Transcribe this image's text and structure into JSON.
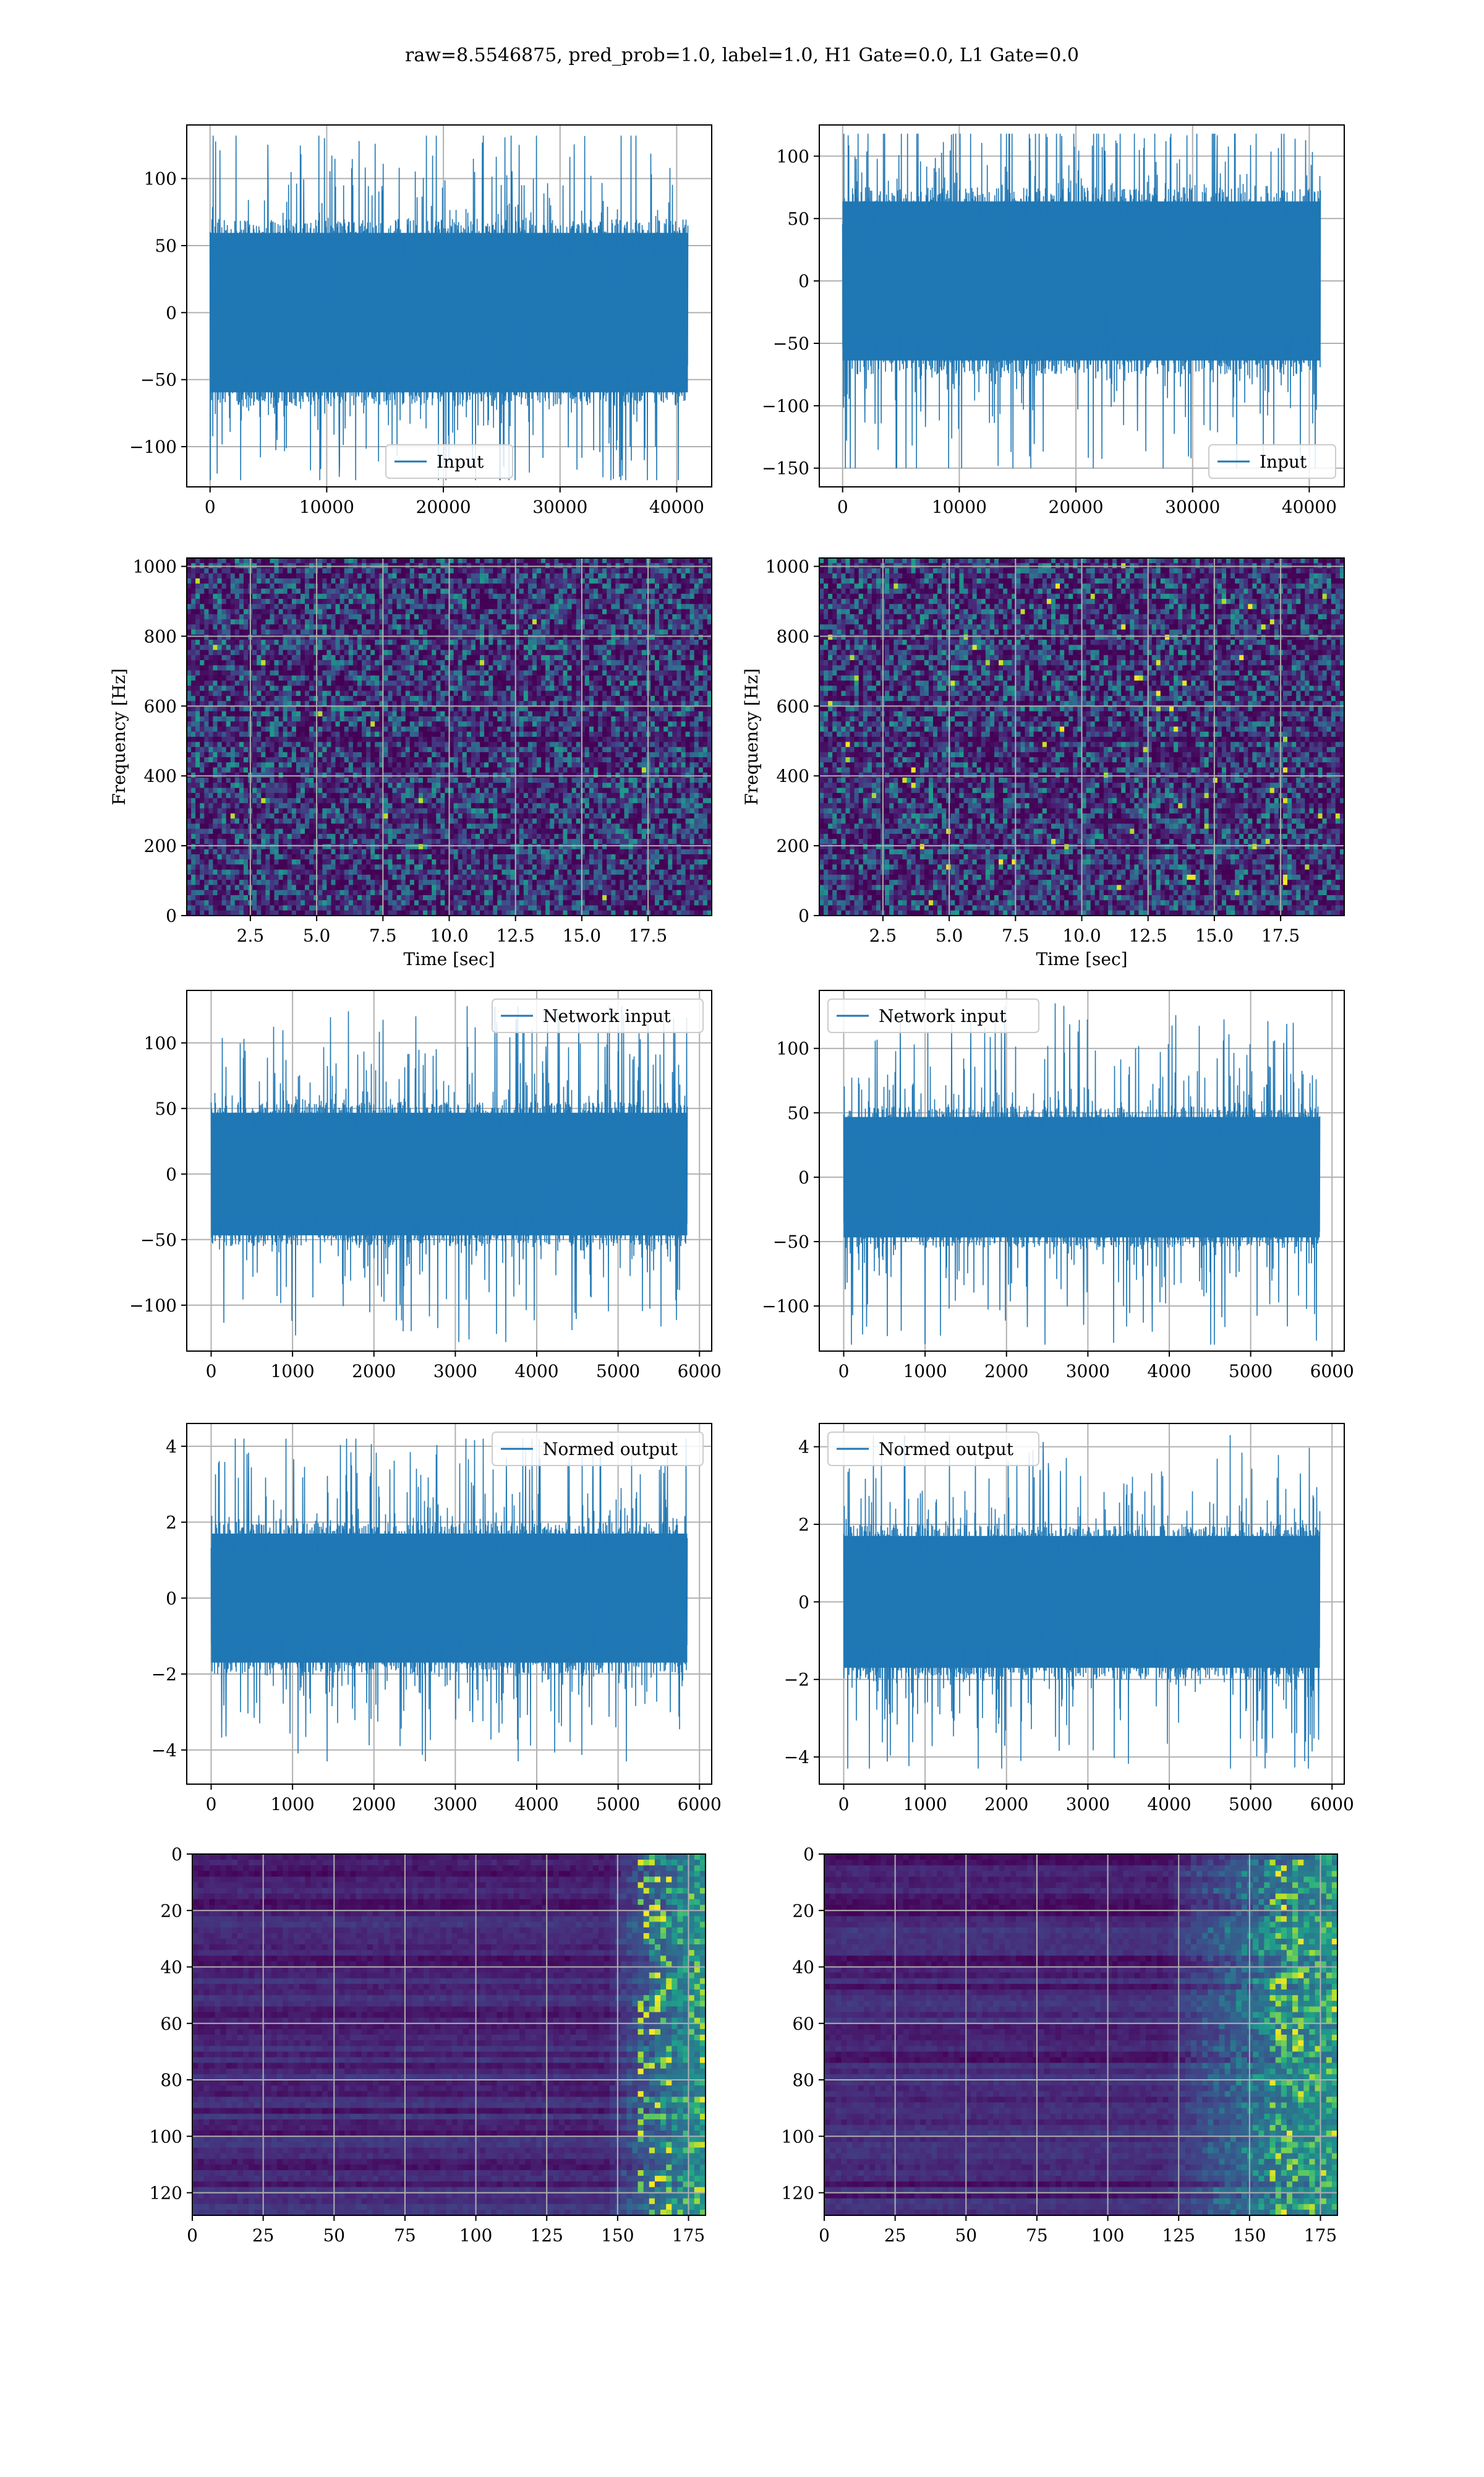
{
  "figure": {
    "suptitle": "raw=8.5546875, pred_prob=1.0, label=1.0, H1 Gate=0.0, L1 Gate=0.0"
  },
  "colors": {
    "line": "#1f77b4",
    "grid": "#b0b0b0",
    "viridis_dark": "#440154",
    "viridis_mid": "#21918c",
    "viridis_light": "#fde725"
  },
  "chart_data": [
    {
      "id": "input_left",
      "type": "line",
      "legend": "Input",
      "legend_loc": "lower center",
      "xlim": [
        -2000,
        43000
      ],
      "ylim": [
        -130,
        140
      ],
      "xticks": [
        0,
        10000,
        20000,
        30000,
        40000
      ],
      "yticks": [
        -100,
        -50,
        0,
        50,
        100
      ],
      "x_range": [
        0,
        40960
      ],
      "band": [
        -70,
        70
      ],
      "peak_range": [
        -125,
        132
      ],
      "grid": true,
      "xlabel": "",
      "ylabel": ""
    },
    {
      "id": "input_right",
      "type": "line",
      "legend": "Input",
      "legend_loc": "lower right",
      "xlim": [
        -2000,
        43000
      ],
      "ylim": [
        -165,
        125
      ],
      "xticks": [
        0,
        10000,
        20000,
        30000,
        40000
      ],
      "yticks": [
        -150,
        -100,
        -50,
        0,
        50,
        100
      ],
      "x_range": [
        0,
        40960
      ],
      "band": [
        -75,
        75
      ],
      "peak_range": [
        -150,
        118
      ],
      "grid": true,
      "xlabel": "",
      "ylabel": ""
    },
    {
      "id": "spectrogram_left",
      "type": "heatmap",
      "colormap": "viridis",
      "xlim": [
        0.1,
        19.9
      ],
      "ylim": [
        0,
        1024
      ],
      "xticks": [
        2.5,
        5.0,
        7.5,
        10.0,
        12.5,
        15.0,
        17.5
      ],
      "xtick_labels": [
        "2.5",
        "5.0",
        "7.5",
        "10.0",
        "12.5",
        "15.0",
        "17.5"
      ],
      "yticks": [
        0,
        200,
        400,
        600,
        800,
        1000
      ],
      "xlabel": "Time [sec]",
      "ylabel": "Frequency [Hz]",
      "grid": true
    },
    {
      "id": "spectrogram_right",
      "type": "heatmap",
      "colormap": "viridis",
      "xlim": [
        0.1,
        19.9
      ],
      "ylim": [
        0,
        1024
      ],
      "xticks": [
        2.5,
        5.0,
        7.5,
        10.0,
        12.5,
        15.0,
        17.5
      ],
      "xtick_labels": [
        "2.5",
        "5.0",
        "7.5",
        "10.0",
        "12.5",
        "15.0",
        "17.5"
      ],
      "yticks": [
        0,
        200,
        400,
        600,
        800,
        1000
      ],
      "xlabel": "Time [sec]",
      "ylabel": "Frequency [Hz]",
      "grid": true
    },
    {
      "id": "network_left",
      "type": "line",
      "legend": "Network input",
      "legend_loc": "upper right",
      "xlim": [
        -300,
        6150
      ],
      "ylim": [
        -135,
        140
      ],
      "xticks": [
        0,
        1000,
        2000,
        3000,
        4000,
        5000,
        6000
      ],
      "yticks": [
        -100,
        -50,
        0,
        50,
        100
      ],
      "x_range": [
        0,
        5850
      ],
      "band": [
        -55,
        55
      ],
      "peak_range": [
        -128,
        128
      ],
      "grid": true,
      "xlabel": "",
      "ylabel": ""
    },
    {
      "id": "network_right",
      "type": "line",
      "legend": "Network input",
      "legend_loc": "upper left",
      "xlim": [
        -300,
        6150
      ],
      "ylim": [
        -135,
        145
      ],
      "xticks": [
        0,
        1000,
        2000,
        3000,
        4000,
        5000,
        6000
      ],
      "yticks": [
        -100,
        -50,
        0,
        50,
        100
      ],
      "x_range": [
        0,
        5850
      ],
      "band": [
        -55,
        55
      ],
      "peak_range": [
        -130,
        135
      ],
      "grid": true,
      "xlabel": "",
      "ylabel": ""
    },
    {
      "id": "normed_left",
      "type": "line",
      "legend": "Normed output",
      "legend_loc": "upper right",
      "xlim": [
        -300,
        6150
      ],
      "ylim": [
        -4.9,
        4.6
      ],
      "xticks": [
        0,
        1000,
        2000,
        3000,
        4000,
        5000,
        6000
      ],
      "yticks": [
        -4,
        -2,
        0,
        2,
        4
      ],
      "x_range": [
        0,
        5850
      ],
      "band": [
        -2,
        2
      ],
      "peak_range": [
        -4.3,
        4.2
      ],
      "grid": true,
      "xlabel": "",
      "ylabel": ""
    },
    {
      "id": "normed_right",
      "type": "line",
      "legend": "Normed output",
      "legend_loc": "upper left",
      "xlim": [
        -300,
        6150
      ],
      "ylim": [
        -4.7,
        4.6
      ],
      "xticks": [
        0,
        1000,
        2000,
        3000,
        4000,
        5000,
        6000
      ],
      "yticks": [
        -4,
        -2,
        0,
        2,
        4
      ],
      "x_range": [
        0,
        5850
      ],
      "band": [
        -2,
        2
      ],
      "peak_range": [
        -4.3,
        4.3
      ],
      "grid": true,
      "xlabel": "",
      "ylabel": ""
    },
    {
      "id": "features_left",
      "type": "heatmap",
      "colormap": "viridis",
      "xlim": [
        0,
        181
      ],
      "ylim": [
        128,
        0
      ],
      "xticks": [
        0,
        25,
        50,
        75,
        100,
        125,
        150,
        175
      ],
      "yticks": [
        0,
        20,
        40,
        60,
        80,
        100,
        120
      ],
      "grid": true,
      "xlabel": "",
      "ylabel": "",
      "bright_from": 145
    },
    {
      "id": "features_right",
      "type": "heatmap",
      "colormap": "viridis",
      "xlim": [
        0,
        181
      ],
      "ylim": [
        128,
        0
      ],
      "xticks": [
        0,
        25,
        50,
        75,
        100,
        125,
        150,
        175
      ],
      "yticks": [
        0,
        20,
        40,
        60,
        80,
        100,
        120
      ],
      "grid": true,
      "xlabel": "",
      "ylabel": "",
      "bright_from": 120
    }
  ]
}
